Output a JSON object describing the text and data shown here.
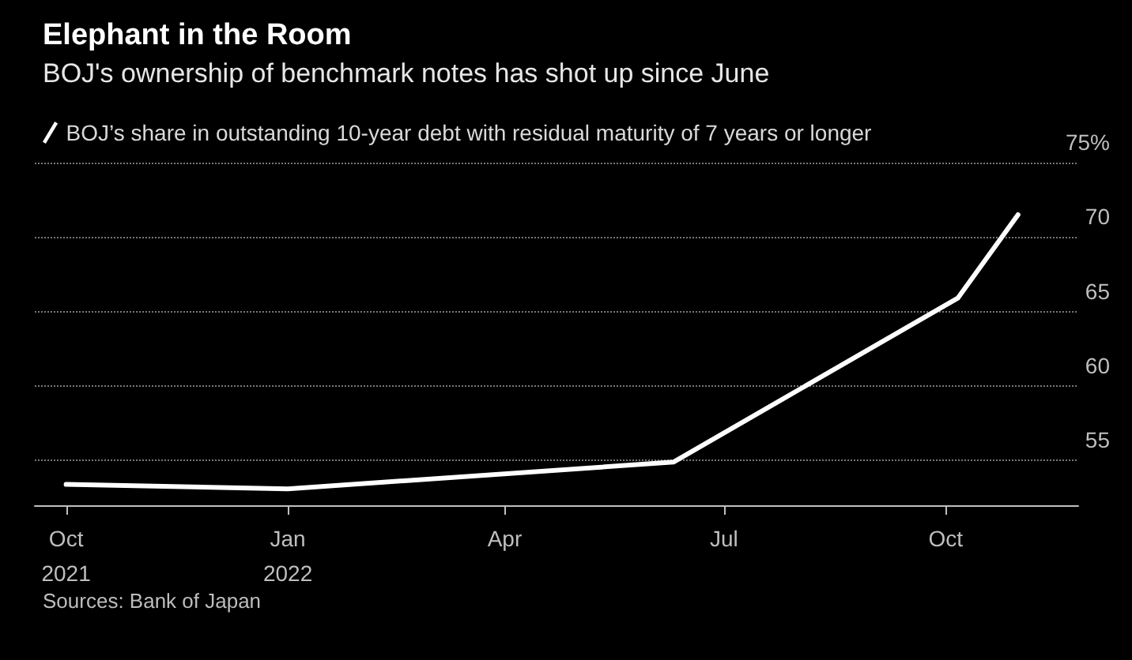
{
  "chart_data": {
    "type": "line",
    "title": "Elephant in the Room",
    "subtitle": "BOJ's ownership of benchmark notes has shot up since June",
    "annotations": [
      "Sources: Bank of Japan"
    ],
    "x": [
      "2021-10-01",
      "2022-01-01",
      "2022-06-10",
      "2022-10-06",
      "2022-10-31"
    ],
    "series": [
      {
        "name": "BOJ’s share in outstanding 10-year debt with residual maturity of 7 years or longer",
        "color": "#ffffff",
        "values": [
          53.4,
          53.1,
          54.9,
          65.9,
          71.5
        ]
      }
    ],
    "xlim": [
      "2021-09-18",
      "2022-11-25"
    ],
    "xticks": [
      {
        "value": "2021-10-01",
        "label": "Oct 2021"
      },
      {
        "value": "2022-01-01",
        "label": "Jan 2022"
      },
      {
        "value": "2022-04-01",
        "label": "Apr"
      },
      {
        "value": "2022-07-01",
        "label": "Jul"
      },
      {
        "value": "2022-10-01",
        "label": "Oct"
      }
    ],
    "ylim": [
      52,
      75
    ],
    "yticks": [
      55,
      60,
      65,
      70,
      {
        "value": 75,
        "label": "75%"
      }
    ],
    "grid": "y",
    "legend": "top left",
    "marker": "none",
    "line_style": "solid"
  }
}
